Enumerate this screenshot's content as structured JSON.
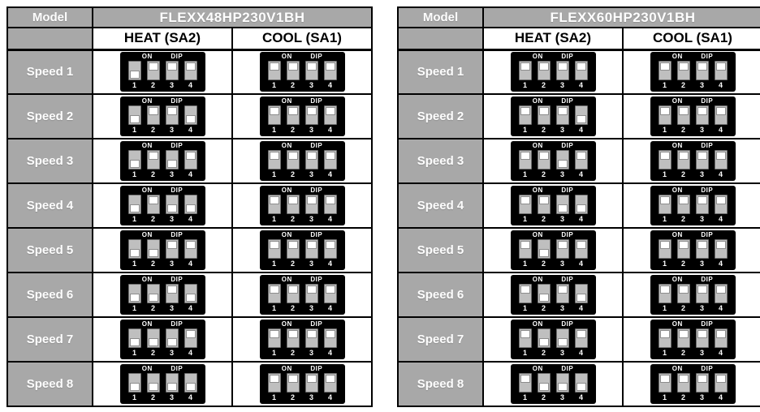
{
  "labels": {
    "model": "Model",
    "on": "ON",
    "dip": "DIP",
    "switch_numbers": [
      "1",
      "2",
      "3",
      "4"
    ]
  },
  "colors": {
    "header_bg": "#a8a8a8",
    "header_text": "#ffffff",
    "subheader_text": "#000000",
    "dip_box_bg": "#000000",
    "switch_slot": "#bfbfbf",
    "switch_knob": "#ffffff",
    "table_border": "#000000"
  },
  "tables": [
    {
      "model": "FLEXX48HP230V1BH",
      "columns": [
        "HEAT (SA2)",
        "COOL (SA1)"
      ],
      "rows": [
        {
          "label": "Speed 1",
          "heat": [
            "down",
            "up",
            "up",
            "up"
          ],
          "cool": [
            "up",
            "up",
            "up",
            "up"
          ]
        },
        {
          "label": "Speed 2",
          "heat": [
            "down",
            "up",
            "up",
            "down"
          ],
          "cool": [
            "up",
            "up",
            "up",
            "up"
          ]
        },
        {
          "label": "Speed 3",
          "heat": [
            "down",
            "up",
            "down",
            "up"
          ],
          "cool": [
            "up",
            "up",
            "up",
            "up"
          ]
        },
        {
          "label": "Speed 4",
          "heat": [
            "down",
            "up",
            "down",
            "down"
          ],
          "cool": [
            "up",
            "up",
            "up",
            "up"
          ]
        },
        {
          "label": "Speed 5",
          "heat": [
            "down",
            "down",
            "up",
            "up"
          ],
          "cool": [
            "up",
            "up",
            "up",
            "up"
          ]
        },
        {
          "label": "Speed 6",
          "heat": [
            "down",
            "down",
            "up",
            "down"
          ],
          "cool": [
            "up",
            "up",
            "up",
            "up"
          ]
        },
        {
          "label": "Speed 7",
          "heat": [
            "down",
            "down",
            "down",
            "up"
          ],
          "cool": [
            "up",
            "up",
            "up",
            "up"
          ]
        },
        {
          "label": "Speed 8",
          "heat": [
            "down",
            "down",
            "down",
            "down"
          ],
          "cool": [
            "up",
            "up",
            "up",
            "up"
          ]
        }
      ]
    },
    {
      "model": "FLEXX60HP230V1BH",
      "columns": [
        "HEAT (SA2)",
        "COOL (SA1)"
      ],
      "rows": [
        {
          "label": "Speed 1",
          "heat": [
            "up",
            "up",
            "up",
            "up"
          ],
          "cool": [
            "up",
            "up",
            "up",
            "up"
          ]
        },
        {
          "label": "Speed 2",
          "heat": [
            "up",
            "up",
            "up",
            "down"
          ],
          "cool": [
            "up",
            "up",
            "up",
            "up"
          ]
        },
        {
          "label": "Speed 3",
          "heat": [
            "up",
            "up",
            "down",
            "up"
          ],
          "cool": [
            "up",
            "up",
            "up",
            "up"
          ]
        },
        {
          "label": "Speed 4",
          "heat": [
            "up",
            "up",
            "down",
            "down"
          ],
          "cool": [
            "up",
            "up",
            "up",
            "up"
          ]
        },
        {
          "label": "Speed 5",
          "heat": [
            "up",
            "down",
            "up",
            "up"
          ],
          "cool": [
            "up",
            "up",
            "up",
            "up"
          ]
        },
        {
          "label": "Speed 6",
          "heat": [
            "up",
            "down",
            "up",
            "down"
          ],
          "cool": [
            "up",
            "up",
            "up",
            "up"
          ]
        },
        {
          "label": "Speed 7",
          "heat": [
            "up",
            "down",
            "down",
            "up"
          ],
          "cool": [
            "up",
            "up",
            "up",
            "up"
          ]
        },
        {
          "label": "Speed 8",
          "heat": [
            "up",
            "down",
            "down",
            "down"
          ],
          "cool": [
            "up",
            "up",
            "up",
            "up"
          ]
        }
      ]
    }
  ]
}
